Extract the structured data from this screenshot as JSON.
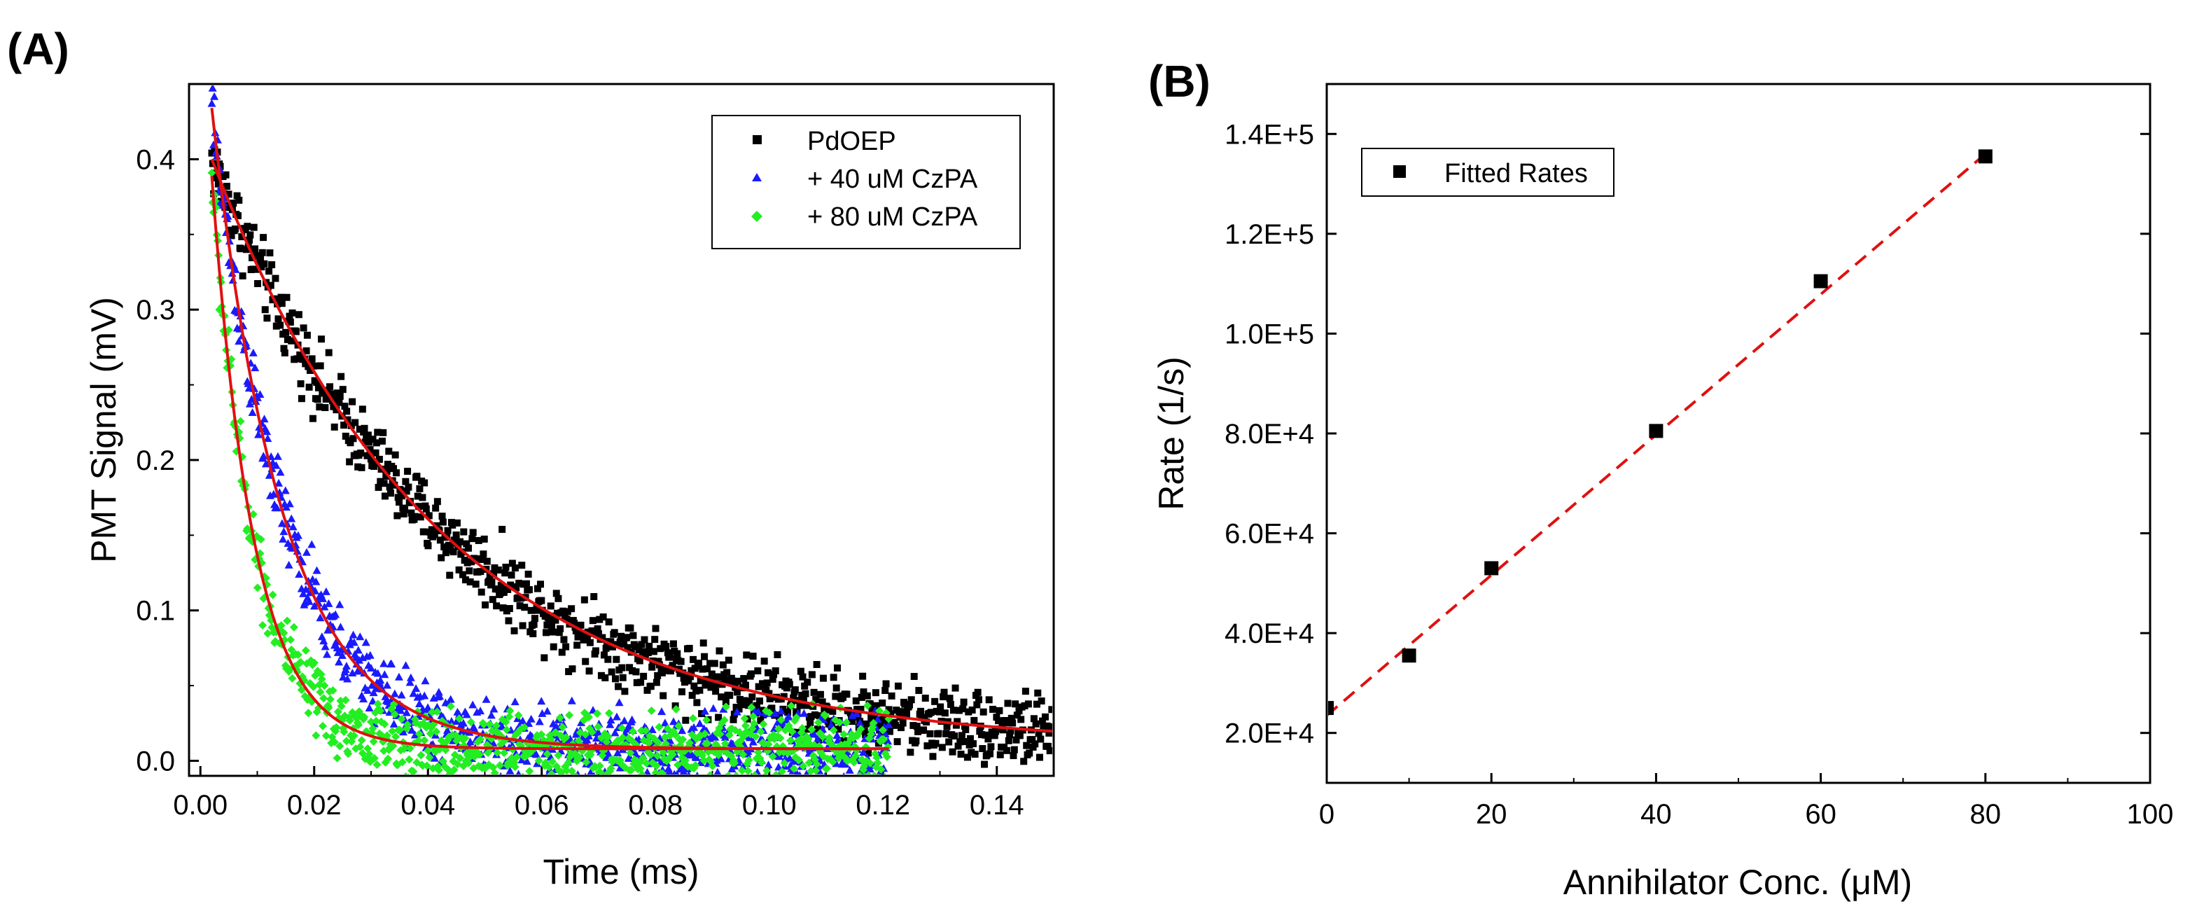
{
  "chart_data": [
    {
      "panel_label": "(A)",
      "type": "scatter",
      "title": "",
      "xlabel": "Time (ms)",
      "ylabel": "PMT Signal (mV)",
      "xlim": [
        -0.002,
        0.15
      ],
      "ylim": [
        -0.01,
        0.45
      ],
      "xticks": [
        0.0,
        0.02,
        0.04,
        0.06,
        0.08,
        0.1,
        0.12,
        0.14
      ],
      "xtick_labels": [
        "0.00",
        "0.02",
        "0.04",
        "0.06",
        "0.08",
        "0.10",
        "0.12",
        "0.14"
      ],
      "yticks": [
        0.0,
        0.1,
        0.2,
        0.3,
        0.4
      ],
      "ytick_labels": [
        "0.0",
        "0.1",
        "0.2",
        "0.3",
        "0.4"
      ],
      "legend_position": "top-right",
      "series": [
        {
          "name": "PdOEP",
          "marker": "square",
          "color": "#000000",
          "model": "exponential decay",
          "amplitude": 0.41,
          "decay_rate_per_ms": 25,
          "baseline": 0.01,
          "noise": 0.012,
          "t_start": 0.002,
          "t_end": 0.15,
          "points": 900
        },
        {
          "name": "+ 40 uM CzPA",
          "marker": "triangle",
          "color": "#1a1aff",
          "model": "exponential decay",
          "amplitude": 0.5,
          "decay_rate_per_ms": 80,
          "baseline": 0.008,
          "noise": 0.012,
          "t_start": 0.002,
          "t_end": 0.121,
          "points": 800
        },
        {
          "name": "+ 80 uM CzPA",
          "marker": "diamond",
          "color": "#22ee22",
          "model": "exponential decay",
          "amplitude": 0.5,
          "decay_rate_per_ms": 136,
          "baseline": 0.008,
          "noise": 0.012,
          "t_start": 0.002,
          "t_end": 0.121,
          "points": 800
        }
      ],
      "fit_color": "#e01010"
    },
    {
      "panel_label": "(B)",
      "type": "scatter",
      "title": "",
      "xlabel": "Annihilator Conc. (μM)",
      "ylabel": "Rate (1/s)",
      "xlim": [
        0,
        100
      ],
      "ylim": [
        10000,
        150000
      ],
      "xticks": [
        0,
        20,
        40,
        60,
        80,
        100
      ],
      "xtick_labels": [
        "0",
        "20",
        "40",
        "60",
        "80",
        "100"
      ],
      "yticks": [
        20000,
        40000,
        60000,
        80000,
        100000,
        120000,
        140000
      ],
      "ytick_labels": [
        "2.0E+4",
        "4.0E+4",
        "6.0E+4",
        "8.0E+4",
        "1.0E+5",
        "1.2E+5",
        "1.4E+5"
      ],
      "legend_position": "top-left",
      "series": [
        {
          "name": "Fitted Rates",
          "marker": "square",
          "color": "#000000",
          "x": [
            0,
            10,
            20,
            40,
            60,
            80
          ],
          "y": [
            25000,
            35500,
            53000,
            80500,
            110500,
            135500
          ]
        }
      ],
      "fit": {
        "style": "dashed",
        "color": "#e01010",
        "x": [
          0,
          80
        ],
        "y": [
          23500,
          136000
        ]
      }
    }
  ]
}
